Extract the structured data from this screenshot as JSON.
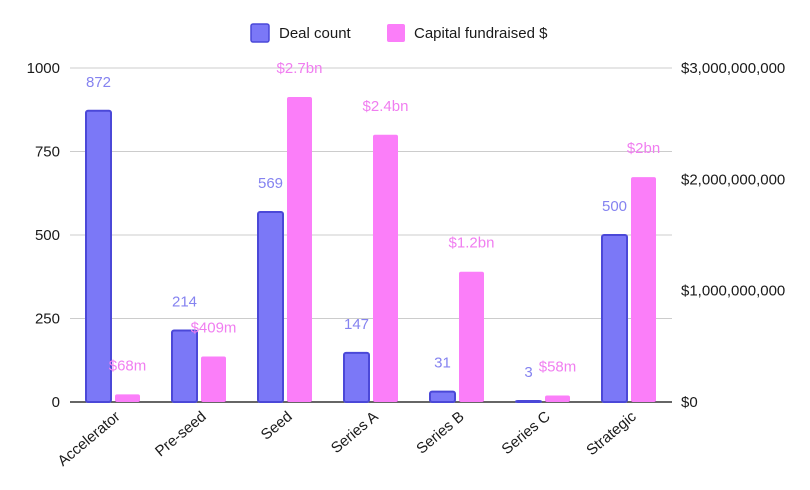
{
  "chart_data": {
    "type": "bar",
    "title": "",
    "xlabel": "",
    "ylabel": "",
    "categories": [
      "Accelerator",
      "Pre-seed",
      "Seed",
      "Series A",
      "Series B",
      "Series C",
      "Strategic"
    ],
    "series": [
      {
        "name": "Deal count",
        "axis": "left",
        "color": "#7b78f7",
        "stroke": "#4b48d8",
        "label_color": "#8583f0",
        "values": [
          872,
          214,
          569,
          147,
          31,
          3,
          500
        ],
        "labels": [
          "872",
          "214",
          "569",
          "147",
          "31",
          "3",
          "500"
        ]
      },
      {
        "name": "Capital fundraised $",
        "axis": "right",
        "color": "#fb7ef9",
        "stroke": "#fb7ef9",
        "label_color": "#f07ef0",
        "values": [
          68000000,
          409000000,
          2740000000,
          2400000000,
          1170000000,
          58000000,
          2020000000
        ],
        "labels": [
          "$68m",
          "$409m",
          "$2.7bn",
          "$2.4bn",
          "$1.2bn",
          "$58m",
          "$2bn"
        ]
      }
    ],
    "y_left": {
      "min": 0,
      "max": 1000,
      "ticks": [
        0,
        250,
        500,
        750,
        1000
      ],
      "tick_labels": [
        "0",
        "250",
        "500",
        "750",
        "1000"
      ]
    },
    "y_right": {
      "min": 0,
      "max": 3000000000,
      "ticks": [
        0,
        1000000000,
        2000000000,
        3000000000
      ],
      "tick_labels": [
        "$0",
        "$1,000,000,000",
        "$2,000,000,000",
        "$3,000,000,000"
      ]
    },
    "legend": {
      "position": "top",
      "items": [
        "Deal count",
        "Capital fundraised $"
      ]
    },
    "grid": true,
    "colors": {
      "grid": "#cccccc",
      "axis": "#333333"
    }
  }
}
